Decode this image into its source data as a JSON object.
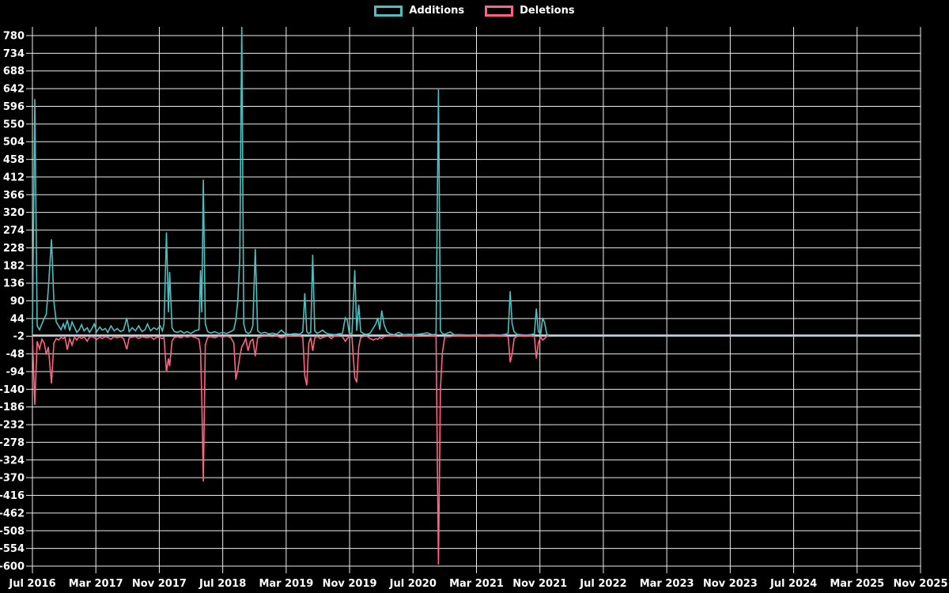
{
  "legend": {
    "items": [
      {
        "label": "Additions",
        "color": "#4bc0c0"
      },
      {
        "label": "Deletions",
        "color": "#ff6384"
      }
    ]
  },
  "chart_data": {
    "type": "line",
    "title": "",
    "xlabel": "",
    "ylabel": "",
    "background_color": "#000000",
    "grid": true,
    "grid_color": "#ededed",
    "zero_line_color": "#b7ced9",
    "tick_label_color": "#ffffff",
    "legend_position": "top-center",
    "ylim": [
      -614,
      803
    ],
    "xlim_months": [
      0,
      112
    ],
    "y_ticks": [
      780,
      734,
      688,
      642,
      596,
      550,
      504,
      458,
      412,
      366,
      320,
      274,
      228,
      182,
      136,
      90,
      44,
      -2,
      -48,
      -94,
      -140,
      -186,
      -232,
      -278,
      -324,
      -370,
      -416,
      -462,
      -508,
      -554,
      -600
    ],
    "x_ticks": [
      {
        "m": 0,
        "label": "Jul 2016"
      },
      {
        "m": 8,
        "label": "Mar 2017"
      },
      {
        "m": 16,
        "label": "Nov 2017"
      },
      {
        "m": 24,
        "label": "Jul 2018"
      },
      {
        "m": 32,
        "label": "Mar 2019"
      },
      {
        "m": 40,
        "label": "Nov 2019"
      },
      {
        "m": 48,
        "label": "Jul 2020"
      },
      {
        "m": 56,
        "label": "Mar 2021"
      },
      {
        "m": 64,
        "label": "Nov 2021"
      },
      {
        "m": 72,
        "label": "Jul 2022"
      },
      {
        "m": 80,
        "label": "Mar 2023"
      },
      {
        "m": 88,
        "label": "Nov 2023"
      },
      {
        "m": 96,
        "label": "Jul 2024"
      },
      {
        "m": 104,
        "label": "Mar 2025"
      },
      {
        "m": 112,
        "label": "Nov 2025"
      }
    ],
    "series": [
      {
        "name": "Additions",
        "color": "#4bc0c0"
      },
      {
        "name": "Deletions",
        "color": "#ff6384"
      }
    ],
    "rows_format": [
      "months_since_jul_2016",
      "additions",
      "deletions"
    ],
    "rows": [
      [
        0.0,
        8,
        -2
      ],
      [
        0.3,
        615,
        -180
      ],
      [
        0.6,
        25,
        -15
      ],
      [
        0.9,
        15,
        -35
      ],
      [
        1.2,
        30,
        -10
      ],
      [
        1.5,
        45,
        -20
      ],
      [
        1.75,
        55,
        -50
      ],
      [
        2.0,
        120,
        -30
      ],
      [
        2.4,
        250,
        -125
      ],
      [
        2.7,
        90,
        -20
      ],
      [
        3.0,
        35,
        -8
      ],
      [
        3.3,
        25,
        -12
      ],
      [
        3.6,
        15,
        -5
      ],
      [
        3.9,
        30,
        -8
      ],
      [
        4.1,
        18,
        -4
      ],
      [
        4.4,
        40,
        -37
      ],
      [
        4.7,
        12,
        -8
      ],
      [
        5.0,
        35,
        -25
      ],
      [
        5.3,
        22,
        -4
      ],
      [
        5.6,
        8,
        -12
      ],
      [
        5.9,
        15,
        -3
      ],
      [
        6.2,
        28,
        -8
      ],
      [
        6.5,
        12,
        -3
      ],
      [
        6.9,
        20,
        -15
      ],
      [
        7.2,
        8,
        -4
      ],
      [
        7.5,
        18,
        -3
      ],
      [
        7.8,
        30,
        -6
      ],
      [
        8.1,
        10,
        -10
      ],
      [
        8.5,
        22,
        -4
      ],
      [
        8.8,
        14,
        -8
      ],
      [
        9.2,
        18,
        -3
      ],
      [
        9.5,
        8,
        -5
      ],
      [
        9.9,
        25,
        -10
      ],
      [
        10.3,
        12,
        -3
      ],
      [
        10.7,
        18,
        -6
      ],
      [
        11.1,
        10,
        -3
      ],
      [
        11.5,
        14,
        -8
      ],
      [
        11.9,
        46,
        -36
      ],
      [
        12.2,
        10,
        -6
      ],
      [
        12.6,
        20,
        -4
      ],
      [
        13.0,
        12,
        -3
      ],
      [
        13.4,
        25,
        -8
      ],
      [
        13.8,
        10,
        -3
      ],
      [
        14.2,
        15,
        -5
      ],
      [
        14.5,
        30,
        -6
      ],
      [
        14.9,
        12,
        -3
      ],
      [
        15.3,
        20,
        -10
      ],
      [
        15.7,
        15,
        -4
      ],
      [
        16.1,
        25,
        -6
      ],
      [
        16.4,
        12,
        -8
      ],
      [
        16.6,
        30,
        -5
      ],
      [
        16.9,
        268,
        -95
      ],
      [
        17.15,
        60,
        -60
      ],
      [
        17.3,
        165,
        -80
      ],
      [
        17.6,
        20,
        -15
      ],
      [
        17.9,
        10,
        -5
      ],
      [
        18.3,
        8,
        -3
      ],
      [
        18.7,
        12,
        -6
      ],
      [
        19.1,
        6,
        -2
      ],
      [
        19.5,
        10,
        -4
      ],
      [
        20.0,
        5,
        -2
      ],
      [
        20.5,
        12,
        -5
      ],
      [
        21.0,
        15,
        -10
      ],
      [
        21.2,
        170,
        -40
      ],
      [
        21.35,
        60,
        -160
      ],
      [
        21.55,
        405,
        -380
      ],
      [
        21.8,
        30,
        -25
      ],
      [
        22.1,
        10,
        -5
      ],
      [
        22.5,
        6,
        -3
      ],
      [
        23.0,
        10,
        -6
      ],
      [
        23.5,
        5,
        -2
      ],
      [
        24.0,
        8,
        -4
      ],
      [
        24.5,
        5,
        -2
      ],
      [
        25.0,
        10,
        -5
      ],
      [
        25.4,
        15,
        -20
      ],
      [
        25.65,
        40,
        -115
      ],
      [
        25.9,
        90,
        -90
      ],
      [
        26.15,
        200,
        -55
      ],
      [
        26.4,
        805,
        -30
      ],
      [
        26.65,
        30,
        -20
      ],
      [
        26.9,
        10,
        -8
      ],
      [
        27.2,
        5,
        -40
      ],
      [
        27.5,
        8,
        -15
      ],
      [
        27.8,
        25,
        -10
      ],
      [
        28.1,
        225,
        -54
      ],
      [
        28.4,
        12,
        -6
      ],
      [
        28.8,
        5,
        -3
      ],
      [
        29.3,
        8,
        -2
      ],
      [
        29.8,
        4,
        -2
      ],
      [
        30.3,
        6,
        -3
      ],
      [
        30.8,
        3,
        -1
      ],
      [
        31.4,
        14,
        -6
      ],
      [
        31.9,
        4,
        -2
      ],
      [
        32.5,
        3,
        -1
      ],
      [
        33.1,
        5,
        -2
      ],
      [
        33.7,
        3,
        -1
      ],
      [
        34.1,
        10,
        -5
      ],
      [
        34.35,
        110,
        -105
      ],
      [
        34.6,
        10,
        -130
      ],
      [
        34.85,
        5,
        -20
      ],
      [
        35.1,
        8,
        -5
      ],
      [
        35.35,
        210,
        -40
      ],
      [
        35.6,
        12,
        -6
      ],
      [
        35.9,
        5,
        -2
      ],
      [
        36.3,
        10,
        -8
      ],
      [
        36.6,
        14,
        -5
      ],
      [
        36.9,
        8,
        -3
      ],
      [
        37.3,
        4,
        -2
      ],
      [
        37.7,
        3,
        -8
      ],
      [
        38.1,
        2,
        -1
      ],
      [
        38.6,
        4,
        -2
      ],
      [
        39.1,
        5,
        -3
      ],
      [
        39.45,
        46,
        -15
      ],
      [
        39.7,
        40,
        -8
      ],
      [
        39.95,
        6,
        -2
      ],
      [
        40.3,
        5,
        -5
      ],
      [
        40.65,
        170,
        -110
      ],
      [
        40.9,
        12,
        -122
      ],
      [
        41.15,
        80,
        -30
      ],
      [
        41.4,
        10,
        -5
      ],
      [
        41.8,
        4,
        -2
      ],
      [
        42.2,
        3,
        -2
      ],
      [
        42.6,
        6,
        -8
      ],
      [
        43.0,
        20,
        -12
      ],
      [
        43.3,
        30,
        -8
      ],
      [
        43.55,
        46,
        -10
      ],
      [
        43.8,
        15,
        -5
      ],
      [
        44.05,
        65,
        -8
      ],
      [
        44.35,
        28,
        -3
      ],
      [
        44.7,
        10,
        -2
      ],
      [
        45.1,
        4,
        -1
      ],
      [
        45.6,
        2,
        -1
      ],
      [
        46.2,
        8,
        -3
      ],
      [
        46.8,
        2,
        -1
      ],
      [
        47.5,
        3,
        -1
      ],
      [
        48.2,
        2,
        -1
      ],
      [
        49.0,
        4,
        -2
      ],
      [
        49.8,
        7,
        -2
      ],
      [
        50.4,
        2,
        -1
      ],
      [
        50.9,
        3,
        -1
      ],
      [
        51.2,
        640,
        -596
      ],
      [
        51.45,
        12,
        -140
      ],
      [
        51.7,
        5,
        -45
      ],
      [
        52.0,
        3,
        -3
      ],
      [
        52.7,
        9,
        -3
      ],
      [
        53.2,
        2,
        -1
      ],
      [
        54.0,
        2,
        -1
      ],
      [
        55.0,
        1,
        -1
      ],
      [
        56.0,
        2,
        -1
      ],
      [
        57.0,
        1,
        -1
      ],
      [
        58.0,
        2,
        -1
      ],
      [
        59.0,
        1,
        -1
      ],
      [
        59.7,
        3,
        -2
      ],
      [
        60.0,
        6,
        -3
      ],
      [
        60.25,
        115,
        -70
      ],
      [
        60.5,
        30,
        -48
      ],
      [
        60.75,
        10,
        -8
      ],
      [
        61.1,
        3,
        -2
      ],
      [
        61.6,
        2,
        -1
      ],
      [
        62.2,
        1,
        -1
      ],
      [
        62.8,
        2,
        -1
      ],
      [
        63.3,
        4,
        -2
      ],
      [
        63.55,
        70,
        -60
      ],
      [
        63.8,
        10,
        -20
      ],
      [
        64.1,
        4,
        -4
      ],
      [
        64.35,
        46,
        -12
      ],
      [
        64.6,
        33,
        -8
      ],
      [
        64.85,
        5,
        -2
      ],
      [
        65.1,
        0,
        0
      ]
    ]
  }
}
